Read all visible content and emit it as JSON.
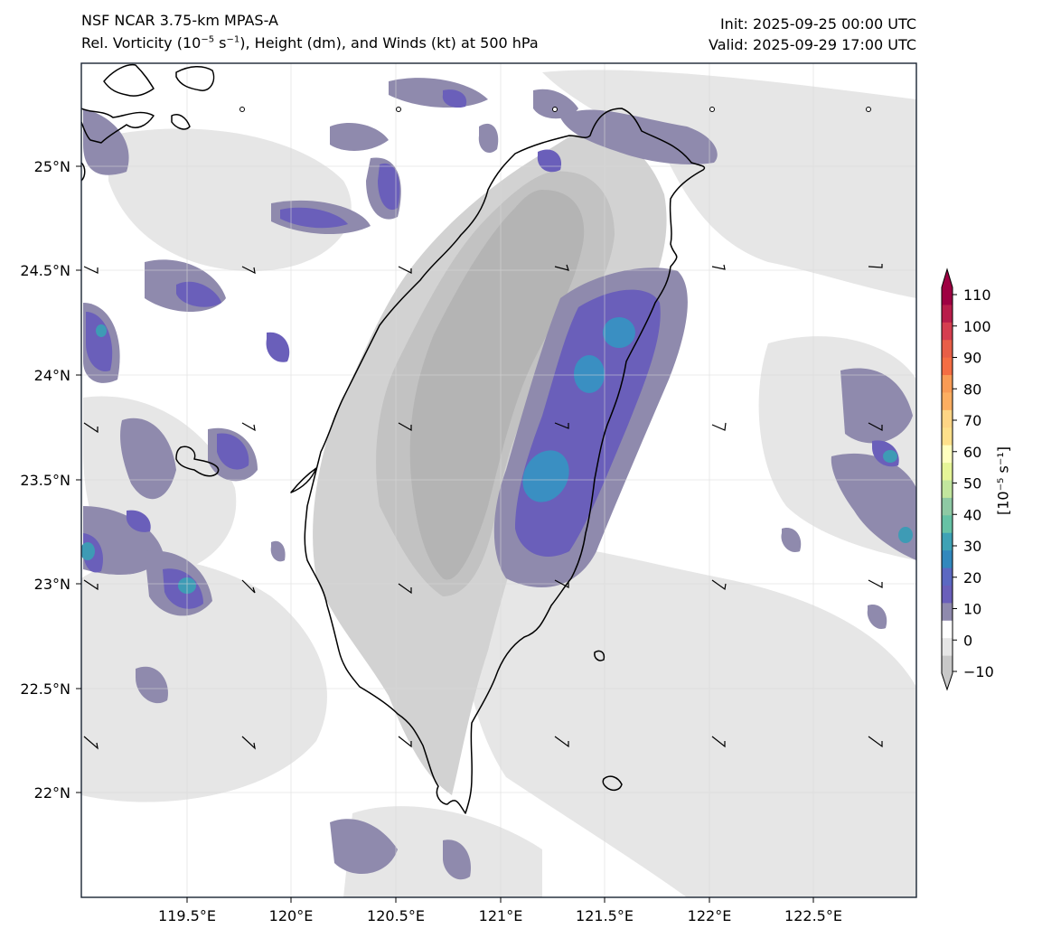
{
  "header": {
    "title_left_line1": "NSF NCAR 3.75-km MPAS-A",
    "title_left_line2_a": "Rel. Vorticity (10",
    "title_left_line2_sup1": "−5",
    "title_left_line2_b": " s",
    "title_left_line2_sup2": "−1",
    "title_left_line2_c": "), Height (dm), and Winds (kt) at 500 hPa",
    "init": "Init: 2025-09-25 00:00 UTC",
    "valid": "Valid: 2025-09-29 17:00 UTC"
  },
  "map": {
    "region": "Taiwan",
    "lon_ticks": [
      "119.5°E",
      "120°E",
      "120.5°E",
      "121°E",
      "121.5°E",
      "122°E",
      "122.5°E"
    ],
    "lat_ticks": [
      "25°N",
      "24.5°N",
      "24°N",
      "23.5°N",
      "23°N",
      "22.5°N",
      "22°N"
    ],
    "gridlines": true
  },
  "colorbar": {
    "ticks": [
      "110",
      "100",
      "90",
      "80",
      "70",
      "60",
      "50",
      "40",
      "30",
      "20",
      "10",
      "0",
      "−10"
    ],
    "label": "[10⁻⁵ s⁻¹]",
    "colors_top_to_bottom": [
      "#9e0142",
      "#b81d4a",
      "#d53e4f",
      "#e85e47",
      "#f46d43",
      "#f99b55",
      "#fdae61",
      "#fed585",
      "#fee08b",
      "#ffffbf",
      "#e6f598",
      "#c2e69e",
      "#8ec9a4",
      "#66c2a5",
      "#3ea2b5",
      "#3288bd",
      "#5b68c2",
      "#6a5fba",
      "#8f8aad",
      "#ffffff",
      "#e6e6e6",
      "#c8c8c8"
    ]
  }
}
